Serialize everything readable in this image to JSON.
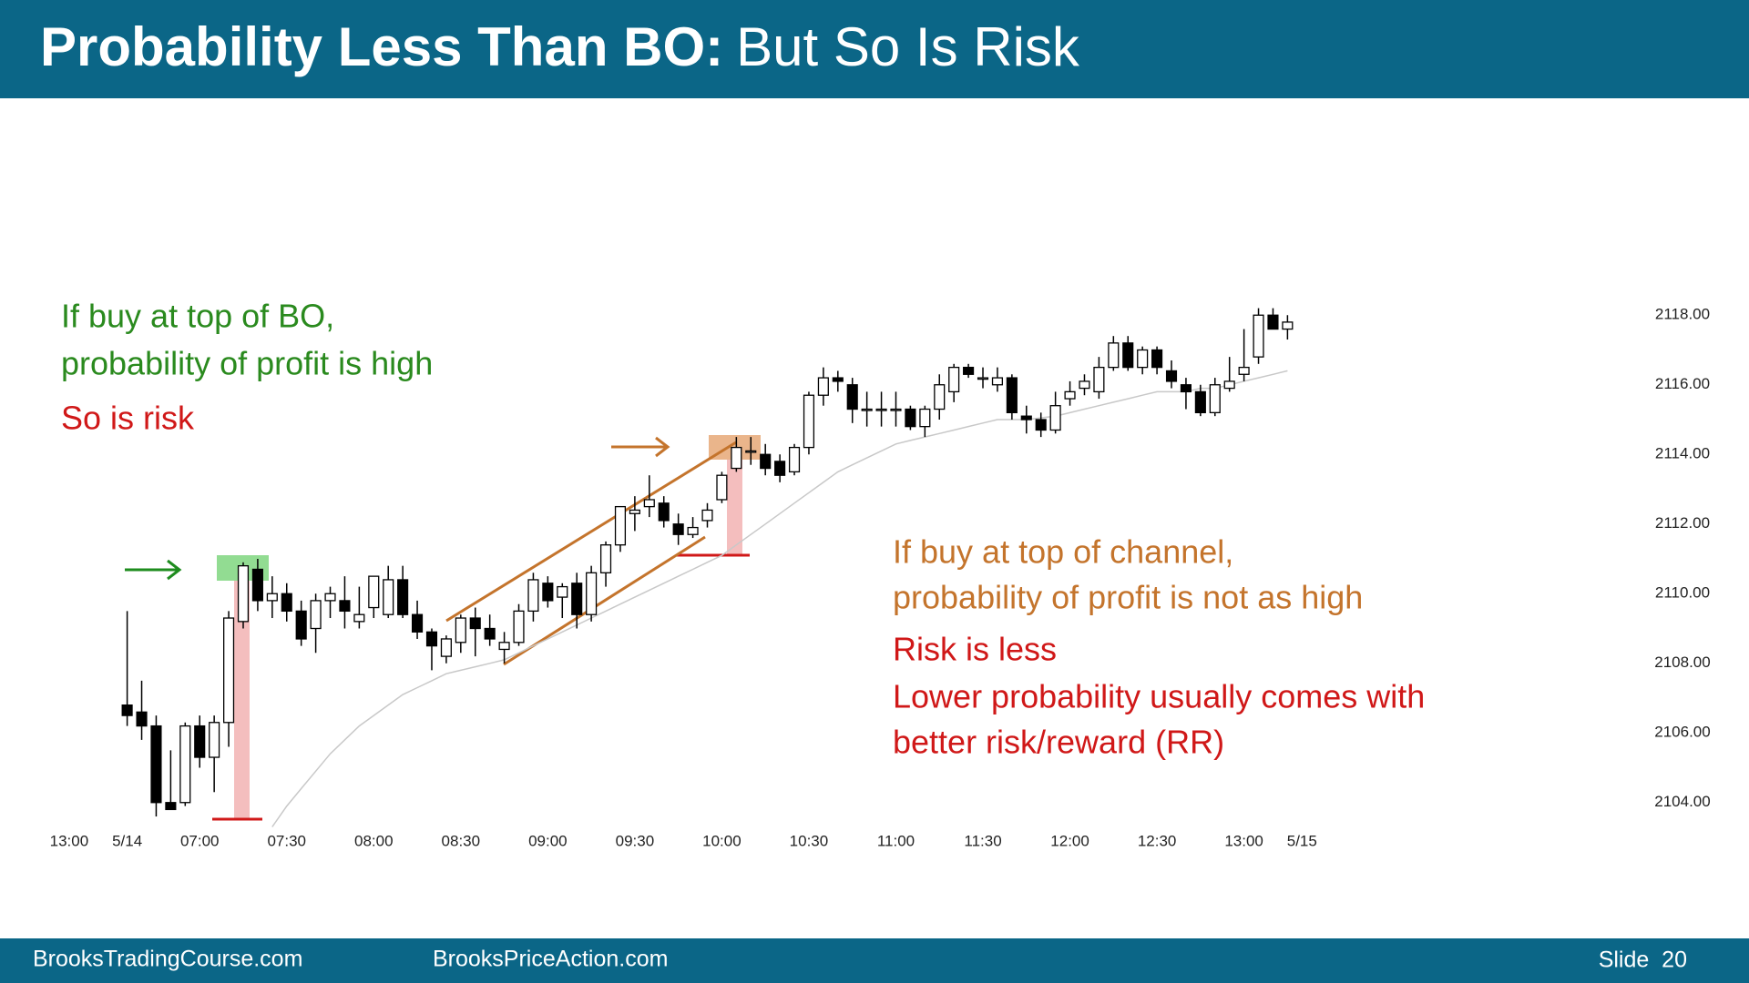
{
  "header": {
    "title_bold": "Probability Less Than BO:",
    "title_rest": "But So Is Risk"
  },
  "chart_data": {
    "type": "candlestick",
    "up_color": "#ffffff",
    "down_color": "#000000",
    "edge_color": "#000000",
    "open": [
      2106.8,
      2106.6,
      2106.2,
      2104.0,
      2104.0,
      2106.2,
      2105.3,
      2106.3,
      2109.2,
      2110.7,
      2109.8,
      2110.0,
      2109.5,
      2109.0,
      2109.8,
      2109.8,
      2109.2,
      2109.6,
      2109.4,
      2110.4,
      2109.4,
      2108.9,
      2108.2,
      2108.6,
      2109.3,
      2109.0,
      2108.4,
      2108.6,
      2109.5,
      2110.3,
      2109.9,
      2110.3,
      2109.4,
      2110.6,
      2111.4,
      2112.3,
      2112.5,
      2112.6,
      2112.0,
      2111.7,
      2112.1,
      2112.7,
      2113.6,
      2114.1,
      2114.0,
      2113.8,
      2113.5,
      2114.2,
      2115.7,
      2116.2,
      2116.0,
      2115.3,
      2115.3,
      2115.3,
      2115.3,
      2114.8,
      2115.3,
      2115.8,
      2116.5,
      2116.2,
      2116.0,
      2116.2,
      2115.1,
      2115.0,
      2114.7,
      2115.6,
      2115.9,
      2115.8,
      2116.5,
      2117.2,
      2116.5,
      2117.0,
      2116.4,
      2116.0,
      2115.8,
      2115.2,
      2115.9,
      2116.3,
      2116.8,
      2118.0,
      2117.6
    ],
    "high": [
      2109.5,
      2107.5,
      2106.5,
      2105.5,
      2106.3,
      2106.5,
      2106.5,
      2109.5,
      2110.9,
      2111.0,
      2110.5,
      2110.3,
      2109.8,
      2110.0,
      2110.2,
      2110.5,
      2110.2,
      2110.5,
      2110.8,
      2110.8,
      2109.8,
      2109.0,
      2108.8,
      2109.4,
      2109.6,
      2109.4,
      2108.9,
      2109.7,
      2110.6,
      2110.5,
      2110.3,
      2110.6,
      2110.8,
      2111.5,
      2112.5,
      2112.8,
      2113.4,
      2112.8,
      2112.3,
      2112.2,
      2112.6,
      2113.5,
      2114.5,
      2114.5,
      2114.3,
      2114.0,
      2114.3,
      2115.8,
      2116.5,
      2116.4,
      2116.2,
      2115.8,
      2115.8,
      2115.8,
      2115.4,
      2115.4,
      2116.3,
      2116.6,
      2116.6,
      2116.5,
      2116.5,
      2116.3,
      2115.4,
      2115.2,
      2115.8,
      2116.1,
      2116.3,
      2116.8,
      2117.4,
      2117.4,
      2117.1,
      2117.1,
      2116.7,
      2116.2,
      2116.0,
      2116.2,
      2116.8,
      2117.6,
      2118.2,
      2118.2,
      2118.0
    ],
    "low": [
      2106.2,
      2105.8,
      2103.6,
      2103.8,
      2103.9,
      2105.0,
      2104.3,
      2105.6,
      2109.0,
      2109.5,
      2109.3,
      2109.2,
      2108.5,
      2108.3,
      2109.3,
      2109.0,
      2109.0,
      2109.3,
      2109.3,
      2109.3,
      2108.7,
      2107.8,
      2108.0,
      2108.3,
      2108.2,
      2108.5,
      2108.0,
      2108.5,
      2109.2,
      2109.6,
      2109.3,
      2109.0,
      2109.2,
      2110.2,
      2111.2,
      2111.8,
      2112.2,
      2111.9,
      2111.4,
      2111.6,
      2111.9,
      2112.6,
      2113.5,
      2113.7,
      2113.4,
      2113.2,
      2113.4,
      2114.0,
      2115.4,
      2115.8,
      2114.9,
      2114.8,
      2114.8,
      2114.8,
      2114.7,
      2114.5,
      2115.0,
      2115.5,
      2116.2,
      2115.9,
      2115.8,
      2115.0,
      2114.6,
      2114.5,
      2114.6,
      2115.4,
      2115.7,
      2115.6,
      2116.4,
      2116.4,
      2116.3,
      2116.3,
      2115.9,
      2115.3,
      2115.1,
      2115.1,
      2115.8,
      2116.1,
      2116.6,
      2117.6,
      2117.3
    ],
    "close": [
      2106.5,
      2106.2,
      2104.0,
      2103.8,
      2106.2,
      2105.3,
      2106.3,
      2109.3,
      2110.8,
      2109.8,
      2110.0,
      2109.5,
      2108.7,
      2109.8,
      2110.0,
      2109.5,
      2109.4,
      2110.5,
      2110.4,
      2109.4,
      2108.9,
      2108.5,
      2108.7,
      2109.3,
      2109.0,
      2108.7,
      2108.6,
      2109.5,
      2110.4,
      2109.8,
      2110.2,
      2109.4,
      2110.6,
      2111.4,
      2112.5,
      2112.4,
      2112.7,
      2112.1,
      2111.7,
      2111.9,
      2112.4,
      2113.4,
      2114.2,
      2114.1,
      2113.6,
      2113.4,
      2114.2,
      2115.7,
      2116.2,
      2116.1,
      2115.3,
      2115.3,
      2115.3,
      2115.3,
      2114.8,
      2115.3,
      2116.0,
      2116.5,
      2116.3,
      2116.2,
      2116.2,
      2115.2,
      2115.0,
      2114.7,
      2115.4,
      2115.8,
      2116.1,
      2116.5,
      2117.2,
      2116.5,
      2117.0,
      2116.5,
      2116.1,
      2115.8,
      2115.2,
      2116.0,
      2116.1,
      2116.5,
      2118.0,
      2117.6,
      2117.8
    ],
    "ma": {
      "color": "#c8c8c8",
      "values": [
        null,
        null,
        null,
        null,
        null,
        null,
        null,
        null,
        null,
        null,
        2103.3,
        2103.9,
        2104.4,
        2104.9,
        2105.4,
        2105.8,
        2106.2,
        2106.5,
        2106.8,
        2107.1,
        2107.3,
        2107.5,
        2107.7,
        2107.8,
        2107.9,
        2108.0,
        2108.1,
        2108.3,
        2108.5,
        2108.7,
        2108.9,
        2109.1,
        2109.3,
        2109.5,
        2109.7,
        2109.9,
        2110.1,
        2110.3,
        2110.5,
        2110.7,
        2110.9,
        2111.1,
        2111.4,
        2111.7,
        2112.0,
        2112.3,
        2112.6,
        2112.9,
        2113.2,
        2113.5,
        2113.7,
        2113.9,
        2114.1,
        2114.3,
        2114.4,
        2114.5,
        2114.6,
        2114.7,
        2114.8,
        2114.9,
        2115.0,
        2115.0,
        2115.0,
        2115.05,
        2115.1,
        2115.2,
        2115.3,
        2115.4,
        2115.5,
        2115.6,
        2115.7,
        2115.8,
        2115.8,
        2115.8,
        2115.9,
        2115.9,
        2116.0,
        2116.1,
        2116.2,
        2116.3,
        2116.4
      ]
    },
    "xlim": [
      -5,
      85
    ],
    "xticks": [
      {
        "value": -4,
        "label": "13:00"
      },
      {
        "value": 0,
        "label": "5/14"
      },
      {
        "value": 5,
        "label": "07:00"
      },
      {
        "value": 11,
        "label": "07:30"
      },
      {
        "value": 17,
        "label": "08:00"
      },
      {
        "value": 23,
        "label": "08:30"
      },
      {
        "value": 29,
        "label": "09:00"
      },
      {
        "value": 35,
        "label": "09:30"
      },
      {
        "value": 41,
        "label": "10:00"
      },
      {
        "value": 47,
        "label": "10:30"
      },
      {
        "value": 53,
        "label": "11:00"
      },
      {
        "value": 59,
        "label": "11:30"
      },
      {
        "value": 65,
        "label": "12:00"
      },
      {
        "value": 71,
        "label": "12:30"
      },
      {
        "value": 77,
        "label": "13:00"
      },
      {
        "value": 81,
        "label": "5/15"
      }
    ],
    "ylim": [
      2103,
      2119
    ],
    "yticks": [
      {
        "value": 2104,
        "label": "2104.00"
      },
      {
        "value": 2106,
        "label": "2106.00"
      },
      {
        "value": 2108,
        "label": "2108.00"
      },
      {
        "value": 2110,
        "label": "2110.00"
      },
      {
        "value": 2112,
        "label": "2112.00"
      },
      {
        "value": 2114,
        "label": "2114.00"
      },
      {
        "value": 2116,
        "label": "2116.00"
      },
      {
        "value": 2118,
        "label": "2118.00"
      }
    ],
    "grid": false,
    "annotations": {
      "bo": [
        "If buy at top of BO,",
        "probability of profit is high"
      ],
      "bo_risk": "So is risk",
      "channel": [
        "If buy at top of channel,",
        "probability of profit is not as high"
      ],
      "channel_risk": [
        "Risk is less",
        "Lower probability usually comes with",
        "better risk/reward (RR)"
      ]
    }
  },
  "footer": {
    "left": "BrooksTradingCourse.com",
    "center": "BrooksPriceAction.com",
    "slide": "Slide  20"
  }
}
